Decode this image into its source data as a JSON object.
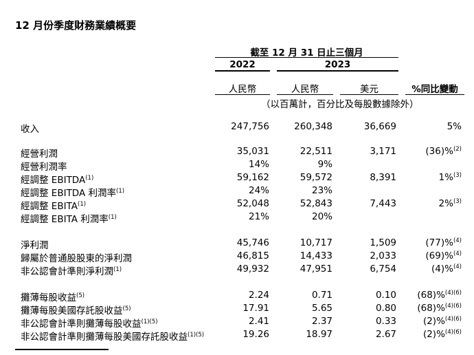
{
  "title": "12 月份季度財務業績概要",
  "header": {
    "period": "截至 12 月 31 日止三個月",
    "year_2022": "2022",
    "year_2023": "2023",
    "col_rmb_2022": "人民幣",
    "col_rmb_2023": "人民幣",
    "col_usd": "美元",
    "col_change": "%同比變動",
    "units_note": "（以百萬計，百分比及每股數據除外）"
  },
  "rows": [
    {
      "label": "收入",
      "label_sup": "",
      "v2022": "247,756",
      "v2023": "260,348",
      "usd": "36,669",
      "chg": "5%",
      "chg_sup": ""
    },
    {
      "label": "經營利潤",
      "label_sup": "",
      "v2022": "35,031",
      "v2023": "22,511",
      "usd": "3,171",
      "chg": "(36)%",
      "chg_sup": "(2)"
    },
    {
      "label": "經營利潤率",
      "label_sup": "",
      "v2022": "14%",
      "v2023": "9%",
      "usd": "",
      "chg": "",
      "chg_sup": ""
    },
    {
      "label": "經調整 EBITDA",
      "label_sup": "(1)",
      "v2022": "59,162",
      "v2023": "59,572",
      "usd": "8,391",
      "chg": "1%",
      "chg_sup": "(3)"
    },
    {
      "label": "經調整 EBITDA 利潤率",
      "label_sup": "(1)",
      "v2022": "24%",
      "v2023": "23%",
      "usd": "",
      "chg": "",
      "chg_sup": ""
    },
    {
      "label": "經調整 EBITA",
      "label_sup": "(1)",
      "v2022": "52,048",
      "v2023": "52,843",
      "usd": "7,443",
      "chg": "2%",
      "chg_sup": "(3)"
    },
    {
      "label": "經調整 EBITA 利潤率",
      "label_sup": "(1)",
      "v2022": "21%",
      "v2023": "20%",
      "usd": "",
      "chg": "",
      "chg_sup": ""
    },
    {
      "label": "淨利潤",
      "label_sup": "",
      "v2022": "45,746",
      "v2023": "10,717",
      "usd": "1,509",
      "chg": "(77)%",
      "chg_sup": "(4)"
    },
    {
      "label": "歸屬於普通股股東的淨利潤",
      "label_sup": "",
      "v2022": "46,815",
      "v2023": "14,433",
      "usd": "2,033",
      "chg": "(69)%",
      "chg_sup": "(4)"
    },
    {
      "label": "非公認會計準則淨利潤",
      "label_sup": "(1)",
      "v2022": "49,932",
      "v2023": "47,951",
      "usd": "6,754",
      "chg": "(4)%",
      "chg_sup": "(4)"
    },
    {
      "label": "攤薄每股收益",
      "label_sup": "(5)",
      "v2022": "2.24",
      "v2023": "0.71",
      "usd": "0.10",
      "chg": "(68)%",
      "chg_sup": "(4)(6)"
    },
    {
      "label": "攤薄每股美國存託股收益",
      "label_sup": "(5)",
      "v2022": "17.91",
      "v2023": "5.65",
      "usd": "0.80",
      "chg": "(68)%",
      "chg_sup": "(4)(6)"
    },
    {
      "label": "非公認會計準則攤薄每股收益",
      "label_sup": "(1)(5)",
      "v2022": "2.41",
      "v2023": "2.37",
      "usd": "0.33",
      "chg": "(2)%",
      "chg_sup": "(4)(6)"
    },
    {
      "label": "非公認會計準則攤薄每股美國存託股收益",
      "label_sup": "(1)(5)",
      "v2022": "19.26",
      "v2023": "18.97",
      "usd": "2.67",
      "chg": "(2)%",
      "chg_sup": "(4)(6)"
    }
  ]
}
